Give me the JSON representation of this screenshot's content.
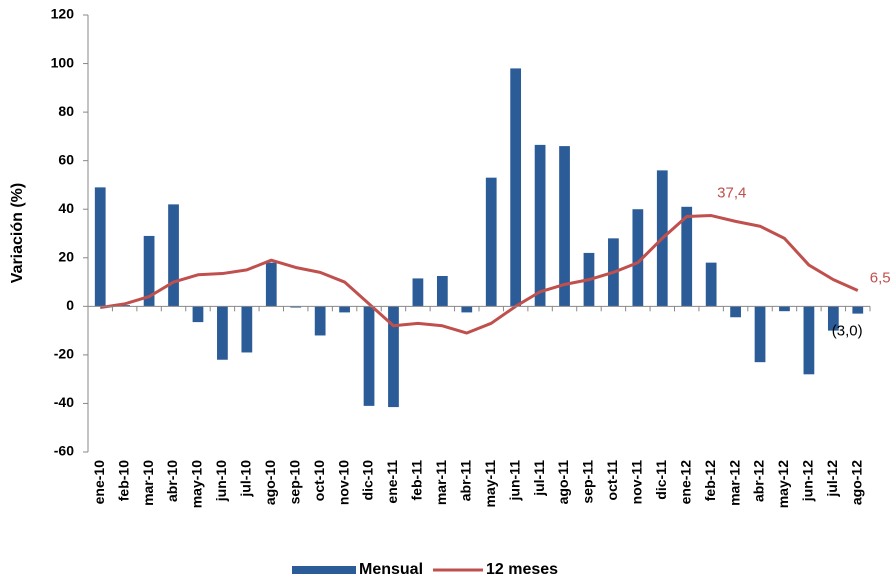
{
  "chart_data": {
    "type": "bar_line",
    "y_label": "Variación (%)",
    "categories": [
      "ene-10",
      "feb-10",
      "mar-10",
      "abr-10",
      "may-10",
      "jun-10",
      "jul-10",
      "ago-10",
      "sep-10",
      "oct-10",
      "nov-10",
      "dic-10",
      "ene-11",
      "feb-11",
      "mar-11",
      "abr-11",
      "may-11",
      "jun-11",
      "jul-11",
      "ago-11",
      "sep-11",
      "oct-11",
      "nov-11",
      "dic-11",
      "ene-12",
      "feb-12",
      "mar-12",
      "abr-12",
      "may-12",
      "jun-12",
      "jul-12",
      "ago-12"
    ],
    "series": [
      {
        "name": "Mensual",
        "type": "bar",
        "color": "#2c5c98",
        "values": [
          49,
          0.5,
          29,
          42,
          -6.5,
          -22,
          -19,
          18,
          -0.5,
          -12,
          -2.5,
          -41,
          -41.5,
          11.5,
          12.5,
          -2.5,
          53,
          98,
          66.5,
          66,
          22,
          28,
          40,
          56,
          41,
          18,
          -4.5,
          -23,
          -2,
          -28,
          -10,
          -3.0
        ],
        "value_labels": [
          null,
          null,
          null,
          null,
          null,
          null,
          null,
          null,
          null,
          null,
          null,
          null,
          null,
          null,
          null,
          null,
          null,
          null,
          null,
          null,
          null,
          null,
          null,
          null,
          null,
          null,
          null,
          null,
          null,
          null,
          null,
          "(3,0)"
        ],
        "label_color": "#000000"
      },
      {
        "name": "12 meses",
        "type": "line",
        "color": "#c0504d",
        "values": [
          -0.5,
          1,
          4,
          10,
          13,
          13.5,
          15,
          19,
          16,
          14,
          10,
          1,
          -8,
          -7,
          -8,
          -11,
          -7,
          0,
          6,
          9,
          11,
          14,
          18,
          28,
          37,
          37.4,
          35,
          33,
          28,
          17,
          11,
          6.5
        ],
        "value_labels": [
          null,
          null,
          null,
          null,
          null,
          null,
          null,
          null,
          null,
          null,
          null,
          null,
          null,
          null,
          null,
          null,
          null,
          null,
          null,
          null,
          null,
          null,
          null,
          null,
          null,
          "37,4",
          null,
          null,
          null,
          null,
          null,
          "6,5"
        ],
        "label_color": "#c0504d"
      }
    ],
    "ylim": [
      -60,
      120
    ],
    "yticks": [
      -60,
      -40,
      -20,
      0,
      20,
      40,
      60,
      80,
      100,
      120
    ],
    "grid": false
  }
}
